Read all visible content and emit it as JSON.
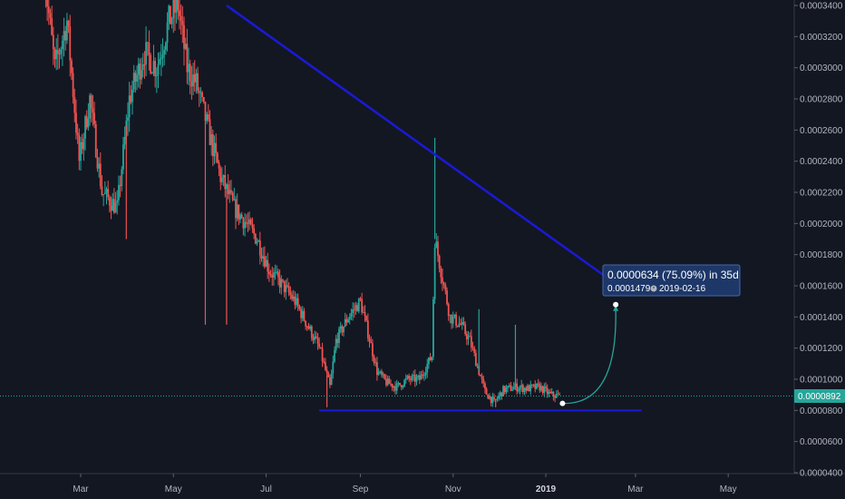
{
  "colors": {
    "background": "#131722",
    "up": "#26a69a",
    "down": "#ef5350",
    "trendline": "#1a1ad6",
    "support": "#1a1ad6",
    "current_price_line": "#26a69a",
    "projection": "#26a69a",
    "tooltip_bg": "#1e3a6e",
    "axis_text": "#b2b5be"
  },
  "chart_data": {
    "type": "candlestick",
    "x_axis": {
      "ticks": [
        "Mar",
        "May",
        "Jul",
        "Sep",
        "Nov",
        "2019",
        "Mar",
        "May"
      ],
      "tick_dates": [
        "2018-03-01",
        "2018-05-01",
        "2018-07-01",
        "2018-09-01",
        "2018-11-01",
        "2019-01-01",
        "2019-03-01",
        "2019-05-01"
      ],
      "range": [
        "2018-02-05",
        "2019-05-20"
      ]
    },
    "y_axis": {
      "ticks": [
        "0.0000400",
        "0.0000600",
        "0.0000800",
        "0.0001000",
        "0.0001200",
        "0.0001400",
        "0.0001600",
        "0.0001800",
        "0.0002000",
        "0.0002200",
        "0.0002400",
        "0.0002600",
        "0.0002800",
        "0.0003000",
        "0.0003200",
        "0.0003400"
      ],
      "range": [
        4e-05,
        0.00034
      ],
      "position": "right"
    },
    "price_path": [
      [
        "2018-02-05",
        0.00036
      ],
      [
        "2018-02-12",
        0.0003
      ],
      [
        "2018-02-20",
        0.00033
      ],
      [
        "2018-02-28",
        0.00024
      ],
      [
        "2018-03-07",
        0.00028
      ],
      [
        "2018-03-15",
        0.00022
      ],
      [
        "2018-03-25",
        0.00021
      ],
      [
        "2018-04-02",
        0.00028
      ],
      [
        "2018-04-12",
        0.00031
      ],
      [
        "2018-04-20",
        0.0003
      ],
      [
        "2018-04-28",
        0.00033
      ],
      [
        "2018-05-04",
        0.00034
      ],
      [
        "2018-05-10",
        0.0003
      ],
      [
        "2018-05-16",
        0.00029
      ],
      [
        "2018-05-24",
        0.00026
      ],
      [
        "2018-06-01",
        0.00023
      ],
      [
        "2018-06-10",
        0.00021
      ],
      [
        "2018-06-18",
        0.0002
      ],
      [
        "2018-06-25",
        0.00019
      ],
      [
        "2018-07-03",
        0.00017
      ],
      [
        "2018-07-12",
        0.00016
      ],
      [
        "2018-07-20",
        0.00015
      ],
      [
        "2018-07-28",
        0.000135
      ],
      [
        "2018-08-05",
        0.00012
      ],
      [
        "2018-08-12",
        9.5e-05
      ],
      [
        "2018-08-16",
        0.000125
      ],
      [
        "2018-08-24",
        0.00014
      ],
      [
        "2018-09-01",
        0.00015
      ],
      [
        "2018-09-06",
        0.00013
      ],
      [
        "2018-09-12",
        0.000105
      ],
      [
        "2018-09-18",
        9.8e-05
      ],
      [
        "2018-09-25",
        9.5e-05
      ],
      [
        "2018-10-02",
        0.0001
      ],
      [
        "2018-10-10",
        0.0001
      ],
      [
        "2018-10-18",
        0.000115
      ],
      [
        "2018-10-20",
        0.00019
      ],
      [
        "2018-10-24",
        0.00017
      ],
      [
        "2018-10-30",
        0.00014
      ],
      [
        "2018-11-06",
        0.000135
      ],
      [
        "2018-11-12",
        0.000125
      ],
      [
        "2018-11-18",
        0.000105
      ],
      [
        "2018-11-22",
        9.2e-05
      ],
      [
        "2018-11-28",
        8.5e-05
      ],
      [
        "2018-12-04",
        9.3e-05
      ],
      [
        "2018-12-12",
        9.5e-05
      ],
      [
        "2018-12-20",
        9.4e-05
      ],
      [
        "2018-12-28",
        9.5e-05
      ],
      [
        "2019-01-04",
        9e-05
      ],
      [
        "2019-01-10",
        8.92e-05
      ]
    ],
    "wicks": [
      {
        "date": "2018-03-31",
        "low": 0.00019
      },
      {
        "date": "2018-05-22",
        "low": 0.000135
      },
      {
        "date": "2018-06-05",
        "low": 0.000135
      },
      {
        "date": "2018-08-10",
        "low": 8.2e-05
      },
      {
        "date": "2018-10-20",
        "high": 0.000255
      },
      {
        "date": "2018-11-18",
        "high": 0.000145
      },
      {
        "date": "2018-11-29",
        "low": 8.2e-05
      },
      {
        "date": "2018-12-12",
        "high": 0.000135
      }
    ],
    "trendline": {
      "start": [
        "2018-06-05",
        0.00034
      ],
      "end": [
        "2019-02-25",
        0.000155
      ]
    },
    "support_line": {
      "start": [
        "2018-08-05",
        8e-05
      ],
      "end": [
        "2019-03-05",
        8e-05
      ]
    },
    "current_price": {
      "value": 8.92e-05,
      "label": "0.0000892"
    },
    "projection": {
      "start": [
        "2019-01-12",
        8.45e-05
      ],
      "end": [
        "2019-02-16",
        0.0001479
      ]
    },
    "tooltip": {
      "line1": "0.0000634 (75.09%) in 35d",
      "price": "0.0001479",
      "date": "2019-02-16"
    }
  }
}
